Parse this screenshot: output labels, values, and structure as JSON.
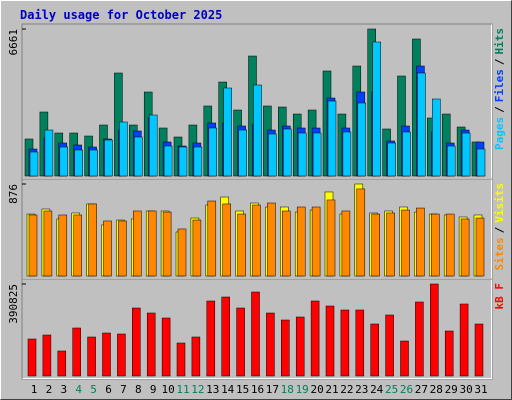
{
  "chart_data": [
    {
      "type": "bar",
      "title": "Daily usage for October 2025",
      "ylim": [
        0,
        6661
      ],
      "yticks": [
        6661
      ],
      "legend_separator": "/",
      "series": [
        {
          "name": "Hits",
          "color": "#00805c",
          "values": [
            1677,
            2900,
            1948,
            1948,
            1812,
            2311,
            4667,
            2311,
            3806,
            2175,
            1767,
            2311,
            3172,
            4259,
            2990,
            5437,
            3172,
            3126,
            2809,
            2990,
            4758,
            2809,
            4984,
            6661,
            2130,
            4531,
            6208,
            2628,
            2809,
            2220,
            1541
          ]
        },
        {
          "name": "Files",
          "color": "#0040ff",
          "values": [
            1223,
            1722,
            1495,
            1405,
            1314,
            1677,
            2084,
            2039,
            2628,
            1541,
            1359,
            1495,
            2402,
            2402,
            2265,
            2356,
            2084,
            2265,
            2175,
            2175,
            3534,
            2175,
            3806,
            3806,
            1586,
            2265,
            4984,
            1994,
            1495,
            2084,
            1541
          ]
        },
        {
          "name": "Pages",
          "color": "#00c8ff",
          "values": [
            1087,
            2084,
            1314,
            1178,
            1178,
            1631,
            2447,
            1767,
            2764,
            1359,
            1314,
            1314,
            2175,
            3987,
            2084,
            4123,
            1903,
            2130,
            1948,
            1948,
            3398,
            1994,
            3308,
            6072,
            1495,
            1994,
            4667,
            3489,
            1359,
            1948,
            1223
          ]
        }
      ]
    },
    {
      "type": "bar",
      "ylim": [
        0,
        876
      ],
      "yticks": [
        876
      ],
      "legend_separator": "/",
      "series": [
        {
          "name": "Visits",
          "color": "#ffff00",
          "values": [
            590,
            638,
            543,
            600,
            686,
            486,
            533,
            543,
            619,
            619,
            419,
            552,
            676,
            752,
            619,
            695,
            657,
            657,
            609,
            628,
            800,
            590,
            876,
            600,
            619,
            657,
            609,
            590,
            581,
            562,
            581
          ]
        },
        {
          "name": "Sites",
          "color": "#ff8800",
          "values": [
            581,
            619,
            581,
            581,
            686,
            524,
            524,
            619,
            619,
            609,
            448,
            533,
            714,
            686,
            590,
            676,
            695,
            619,
            657,
            657,
            724,
            619,
            829,
            590,
            600,
            628,
            647,
            590,
            590,
            543,
            552
          ]
        }
      ]
    },
    {
      "type": "bar",
      "ylim": [
        0,
        390825
      ],
      "yticks": [
        390825
      ],
      "categories": [
        "1",
        "2",
        "3",
        "4",
        "5",
        "6",
        "7",
        "8",
        "9",
        "10",
        "11",
        "12",
        "13",
        "14",
        "15",
        "16",
        "17",
        "18",
        "19",
        "20",
        "21",
        "22",
        "23",
        "24",
        "25",
        "26",
        "27",
        "28",
        "29",
        "30",
        "31"
      ],
      "category_colors": [
        "#000000",
        "#000000",
        "#000000",
        "#00805c",
        "#00805c",
        "#000000",
        "#000000",
        "#000000",
        "#000000",
        "#000000",
        "#00805c",
        "#00805c",
        "#000000",
        "#000000",
        "#000000",
        "#000000",
        "#000000",
        "#00805c",
        "#00805c",
        "#000000",
        "#000000",
        "#000000",
        "#000000",
        "#000000",
        "#00805c",
        "#00805c",
        "#000000",
        "#000000",
        "#000000",
        "#000000",
        "#000000"
      ],
      "series": [
        {
          "name": "kB F",
          "color": "#ff0000",
          "values": [
            157180,
            174172,
            106203,
            203910,
            165676,
            182669,
            178420,
            288872,
            267631,
            246390,
            140187,
            165676,
            318608,
            335600,
            288872,
            356842,
            267631,
            237894,
            250638,
            318608,
            297366,
            280373,
            280373,
            220901,
            259134,
            148683,
            314357,
            390825,
            191163,
            305863,
            220901
          ]
        }
      ]
    }
  ]
}
